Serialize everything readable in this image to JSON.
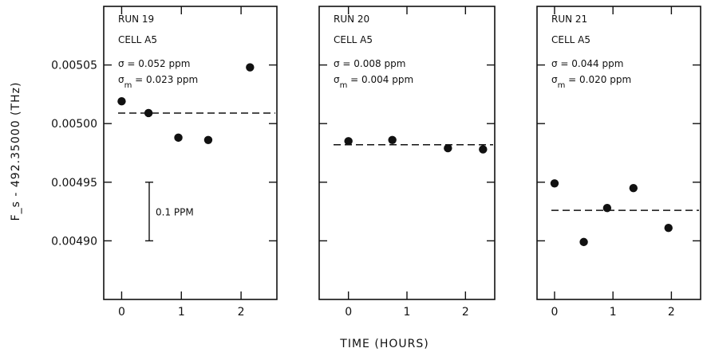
{
  "y_axis_label": "F_s - 492.35000 (THz)",
  "x_axis_label": "TIME (HOURS)",
  "scale_bar": {
    "label": "0.1 PPM",
    "from": 0.0049,
    "to": 0.00495
  },
  "chart_data": [
    {
      "type": "scatter",
      "annotations": [
        "RUN 19",
        "CELL A5",
        "σ = 0.052 ppm",
        "σm = 0.023 ppm"
      ],
      "xticks": [
        "0",
        "1",
        "2"
      ],
      "yticks": [
        "0.00490",
        "0.00495",
        "0.00500",
        "0.00505"
      ],
      "xlim": [
        -0.3,
        2.6
      ],
      "ylim": [
        0.00485,
        0.0051
      ],
      "points": [
        {
          "x": 0.0,
          "y": 0.005019
        },
        {
          "x": 0.45,
          "y": 0.005009
        },
        {
          "x": 0.95,
          "y": 0.004988
        },
        {
          "x": 1.45,
          "y": 0.004986
        },
        {
          "x": 2.15,
          "y": 0.005048
        }
      ],
      "fit_y": 0.005009
    },
    {
      "type": "scatter",
      "annotations": [
        "RUN 20",
        "CELL A5",
        "σ = 0.008 ppm",
        "σm = 0.004 ppm"
      ],
      "xticks": [
        "0",
        "1",
        "2"
      ],
      "xlim": [
        -0.5,
        2.5
      ],
      "ylim": [
        0.00485,
        0.0051
      ],
      "points": [
        {
          "x": 0.0,
          "y": 0.004985
        },
        {
          "x": 0.75,
          "y": 0.004986
        },
        {
          "x": 1.7,
          "y": 0.004979
        },
        {
          "x": 2.3,
          "y": 0.004978
        }
      ],
      "fit_y": 0.004982
    },
    {
      "type": "scatter",
      "annotations": [
        "RUN 21",
        "CELL A5",
        "σ = 0.044 ppm",
        "σm = 0.020 ppm"
      ],
      "xticks": [
        "0",
        "1",
        "2"
      ],
      "xlim": [
        -0.3,
        2.5
      ],
      "ylim": [
        0.00485,
        0.0051
      ],
      "points": [
        {
          "x": 0.0,
          "y": 0.004949
        },
        {
          "x": 0.5,
          "y": 0.004899
        },
        {
          "x": 0.9,
          "y": 0.004928
        },
        {
          "x": 1.35,
          "y": 0.004945
        },
        {
          "x": 1.95,
          "y": 0.004911
        }
      ],
      "fit_y": 0.004926
    }
  ]
}
